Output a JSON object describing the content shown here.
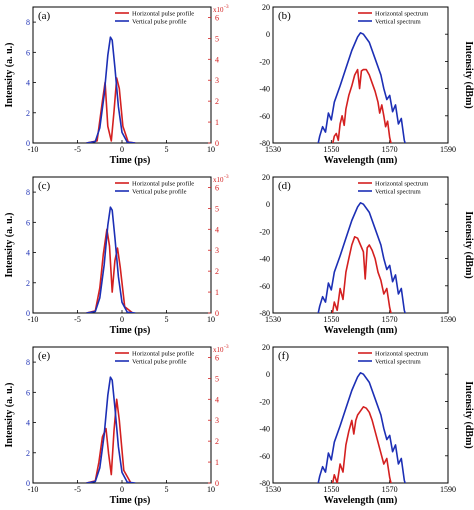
{
  "chart_data": [
    {
      "panel_label": "(a)",
      "type": "line",
      "xlabel": "Time (ps)",
      "ylabel": "Intensity (a. u.)",
      "xlim": [
        -10,
        10
      ],
      "ylim": [
        0,
        9
      ],
      "xticks": [
        "-10",
        "-5",
        "0",
        "5",
        "10"
      ],
      "yticks": [
        "0",
        "2",
        "4",
        "6",
        "8"
      ],
      "y2lim": [
        0,
        6.5
      ],
      "y2ticks": [
        "0",
        "1",
        "2",
        "3",
        "4",
        "5",
        "6"
      ],
      "y2_multiplier": "x10",
      "y2_exponent": "-3",
      "legend": "top-right",
      "series": [
        {
          "name": "Horizontal  pulse profile",
          "color": "#d42020",
          "axis": "right",
          "x": [
            -4,
            -2.8,
            -2.2,
            -1.9,
            -1.6,
            -1.2,
            -0.9,
            -0.6,
            -0.3,
            0.1,
            0.7,
            1.5
          ],
          "values": [
            0,
            0.1,
            2.0,
            2.9,
            0.8,
            0.1,
            1.5,
            3.1,
            2.6,
            0.8,
            0.05,
            0
          ]
        },
        {
          "name": "Vertical pulse profile",
          "color": "#1c2fb5",
          "axis": "left",
          "x": [
            -4,
            -3,
            -2.5,
            -2,
            -1.6,
            -1.3,
            -1.1,
            -0.8,
            -0.4,
            0,
            0.6,
            1.5
          ],
          "values": [
            0,
            0.1,
            1.0,
            3.2,
            5.8,
            7.0,
            6.8,
            5.0,
            2.4,
            0.7,
            0.05,
            0
          ]
        }
      ]
    },
    {
      "panel_label": "(b)",
      "type": "line",
      "xlabel": "Wavelength (nm)",
      "ylabel": "Intensity (dBm)",
      "xlim": [
        1530,
        1590
      ],
      "ylim": [
        -80,
        20
      ],
      "xticks": [
        "1530",
        "1550",
        "1570",
        "1590"
      ],
      "yticks": [
        "-80",
        "-60",
        "-40",
        "-20",
        "0",
        "20"
      ],
      "legend": "top-right",
      "series": [
        {
          "name": "Horizontal spectrum",
          "color": "#d42020",
          "x": [
            1550,
            1551,
            1551.7,
            1552.4,
            1553,
            1553.7,
            1554.4,
            1555,
            1556,
            1557,
            1558,
            1559,
            1559.7,
            1560.3,
            1561,
            1562,
            1563,
            1564,
            1565,
            1566,
            1566.6,
            1567.3,
            1568,
            1568.6,
            1569.3,
            1570,
            1571
          ],
          "values": [
            -85,
            -75,
            -73,
            -78,
            -66,
            -60,
            -67,
            -55,
            -45,
            -38,
            -30,
            -26,
            -40,
            -27,
            -26,
            -26,
            -30,
            -36,
            -42,
            -50,
            -58,
            -52,
            -60,
            -68,
            -64,
            -76,
            -85
          ]
        },
        {
          "name": "Vertical spectrum",
          "color": "#1c2fb5",
          "x": [
            1545,
            1546,
            1547,
            1548,
            1549,
            1550,
            1551,
            1552,
            1553,
            1555,
            1557,
            1559,
            1560,
            1561,
            1563,
            1565,
            1567,
            1568,
            1569,
            1570,
            1571,
            1572,
            1573,
            1574,
            1575,
            1576
          ],
          "values": [
            -85,
            -75,
            -68,
            -72,
            -58,
            -63,
            -50,
            -44,
            -38,
            -25,
            -12,
            -2,
            1,
            0,
            -6,
            -18,
            -30,
            -40,
            -48,
            -45,
            -57,
            -52,
            -66,
            -62,
            -78,
            -85
          ]
        }
      ]
    },
    {
      "panel_label": "(c)",
      "type": "line",
      "xlabel": "Time (ps)",
      "ylabel": "Intensity (a. u.)",
      "xlim": [
        -10,
        10
      ],
      "ylim": [
        0,
        9
      ],
      "xticks": [
        "-10",
        "-5",
        "0",
        "5",
        "10"
      ],
      "yticks": [
        "0",
        "2",
        "4",
        "6",
        "8"
      ],
      "y2lim": [
        0,
        6.5
      ],
      "y2ticks": [
        "0",
        "1",
        "2",
        "3",
        "4",
        "5",
        "6"
      ],
      "y2_multiplier": "x10",
      "y2_exponent": "-3",
      "legend": "top-right",
      "series": [
        {
          "name": "Horizontal  pulse profile",
          "color": "#d42020",
          "axis": "right",
          "x": [
            -4,
            -3,
            -2.5,
            -2.1,
            -1.7,
            -1.4,
            -1.1,
            -0.8,
            -0.5,
            -0.2,
            0.3,
            1.2
          ],
          "values": [
            0,
            0.1,
            1.2,
            2.8,
            4.0,
            3.2,
            1.0,
            2.5,
            3.1,
            2.2,
            0.3,
            0
          ]
        },
        {
          "name": "Vertical pulse profile",
          "color": "#1c2fb5",
          "axis": "left",
          "x": [
            -4,
            -3,
            -2.5,
            -2,
            -1.6,
            -1.3,
            -1.1,
            -0.8,
            -0.4,
            0,
            0.6,
            1.5
          ],
          "values": [
            0,
            0.1,
            1.0,
            3.2,
            5.8,
            7.0,
            6.8,
            5.0,
            2.4,
            0.7,
            0.05,
            0
          ]
        }
      ]
    },
    {
      "panel_label": "(d)",
      "type": "line",
      "xlabel": "Wavelength (nm)",
      "ylabel": "Intensity (dBm)",
      "xlim": [
        1530,
        1590
      ],
      "ylim": [
        -80,
        20
      ],
      "xticks": [
        "1530",
        "1550",
        "1570",
        "1590"
      ],
      "yticks": [
        "-80",
        "-60",
        "-40",
        "-20",
        "0",
        "20"
      ],
      "legend": "top-right",
      "series": [
        {
          "name": "Horizontal spectrum",
          "color": "#d42020",
          "x": [
            1550,
            1551,
            1552,
            1553,
            1554,
            1555,
            1556,
            1557,
            1558,
            1559,
            1560,
            1561,
            1561.6,
            1562.3,
            1563,
            1564,
            1565,
            1566,
            1567,
            1568,
            1569,
            1570,
            1571
          ],
          "values": [
            -85,
            -72,
            -78,
            -62,
            -70,
            -50,
            -40,
            -30,
            -24,
            -25,
            -30,
            -35,
            -55,
            -32,
            -30,
            -34,
            -40,
            -50,
            -56,
            -66,
            -62,
            -76,
            -85
          ]
        },
        {
          "name": "Vertical spectrum",
          "color": "#1c2fb5",
          "x": [
            1545,
            1546,
            1547,
            1548,
            1549,
            1550,
            1551,
            1552,
            1553,
            1555,
            1557,
            1559,
            1560,
            1561,
            1563,
            1565,
            1567,
            1568,
            1569,
            1570,
            1571,
            1572,
            1573,
            1574,
            1575,
            1576
          ],
          "values": [
            -85,
            -75,
            -68,
            -72,
            -58,
            -63,
            -50,
            -44,
            -38,
            -25,
            -12,
            -2,
            1,
            0,
            -6,
            -18,
            -30,
            -40,
            -48,
            -45,
            -57,
            -52,
            -66,
            -62,
            -78,
            -85
          ]
        }
      ]
    },
    {
      "panel_label": "(e)",
      "type": "line",
      "xlabel": "Time (ps)",
      "ylabel": "Intensity (a. u.)",
      "xlim": [
        -10,
        10
      ],
      "ylim": [
        0,
        9
      ],
      "xticks": [
        "-10",
        "-5",
        "0",
        "5",
        "10"
      ],
      "yticks": [
        "0",
        "2",
        "4",
        "6",
        "8"
      ],
      "y2lim": [
        0,
        6.5
      ],
      "y2ticks": [
        "0",
        "1",
        "2",
        "3",
        "4",
        "5",
        "6"
      ],
      "y2_multiplier": "x10",
      "y2_exponent": "-3",
      "legend": "top-right",
      "series": [
        {
          "name": "Horizontal  pulse profile",
          "color": "#d42020",
          "axis": "right",
          "x": [
            -4,
            -3,
            -2.6,
            -2.2,
            -1.8,
            -1.5,
            -1.2,
            -0.9,
            -0.6,
            -0.3,
            0.2,
            1.0
          ],
          "values": [
            0,
            0.1,
            1.0,
            2.2,
            2.6,
            1.4,
            0.4,
            2.5,
            4.0,
            3.0,
            0.6,
            0
          ]
        },
        {
          "name": "Vertical pulse profile",
          "color": "#1c2fb5",
          "axis": "left",
          "x": [
            -4,
            -3,
            -2.5,
            -2,
            -1.6,
            -1.3,
            -1.1,
            -0.8,
            -0.4,
            0,
            0.6,
            1.5
          ],
          "values": [
            0,
            0.1,
            1.0,
            3.2,
            5.8,
            7.0,
            6.8,
            5.0,
            2.4,
            0.7,
            0.05,
            0
          ]
        }
      ]
    },
    {
      "panel_label": "(f)",
      "type": "line",
      "xlabel": "Wavelength (nm)",
      "ylabel": "Intensity (dBm)",
      "xlim": [
        1530,
        1590
      ],
      "ylim": [
        -80,
        20
      ],
      "xticks": [
        "1530",
        "1550",
        "1570",
        "1590"
      ],
      "yticks": [
        "-80",
        "-60",
        "-40",
        "-20",
        "0",
        "20"
      ],
      "legend": "top-right",
      "series": [
        {
          "name": "Horizontal spectrum",
          "color": "#d42020",
          "x": [
            1550,
            1551,
            1552,
            1553,
            1554,
            1555,
            1556,
            1557,
            1557.7,
            1558.4,
            1559,
            1560,
            1561,
            1562,
            1563,
            1564,
            1565,
            1566,
            1567,
            1568,
            1569,
            1570,
            1571
          ],
          "values": [
            -85,
            -74,
            -80,
            -66,
            -72,
            -52,
            -42,
            -34,
            -44,
            -34,
            -30,
            -27,
            -24,
            -25,
            -28,
            -34,
            -42,
            -50,
            -58,
            -66,
            -62,
            -76,
            -85
          ]
        },
        {
          "name": "Vertical spectrum",
          "color": "#1c2fb5",
          "x": [
            1545,
            1546,
            1547,
            1548,
            1549,
            1550,
            1551,
            1552,
            1553,
            1555,
            1557,
            1559,
            1560,
            1561,
            1563,
            1565,
            1567,
            1568,
            1569,
            1570,
            1571,
            1572,
            1573,
            1574,
            1575,
            1576
          ],
          "values": [
            -85,
            -75,
            -68,
            -72,
            -58,
            -63,
            -50,
            -44,
            -38,
            -25,
            -12,
            -2,
            1,
            0,
            -6,
            -18,
            -30,
            -40,
            -48,
            -45,
            -57,
            -52,
            -66,
            -62,
            -78,
            -85
          ]
        }
      ]
    }
  ]
}
